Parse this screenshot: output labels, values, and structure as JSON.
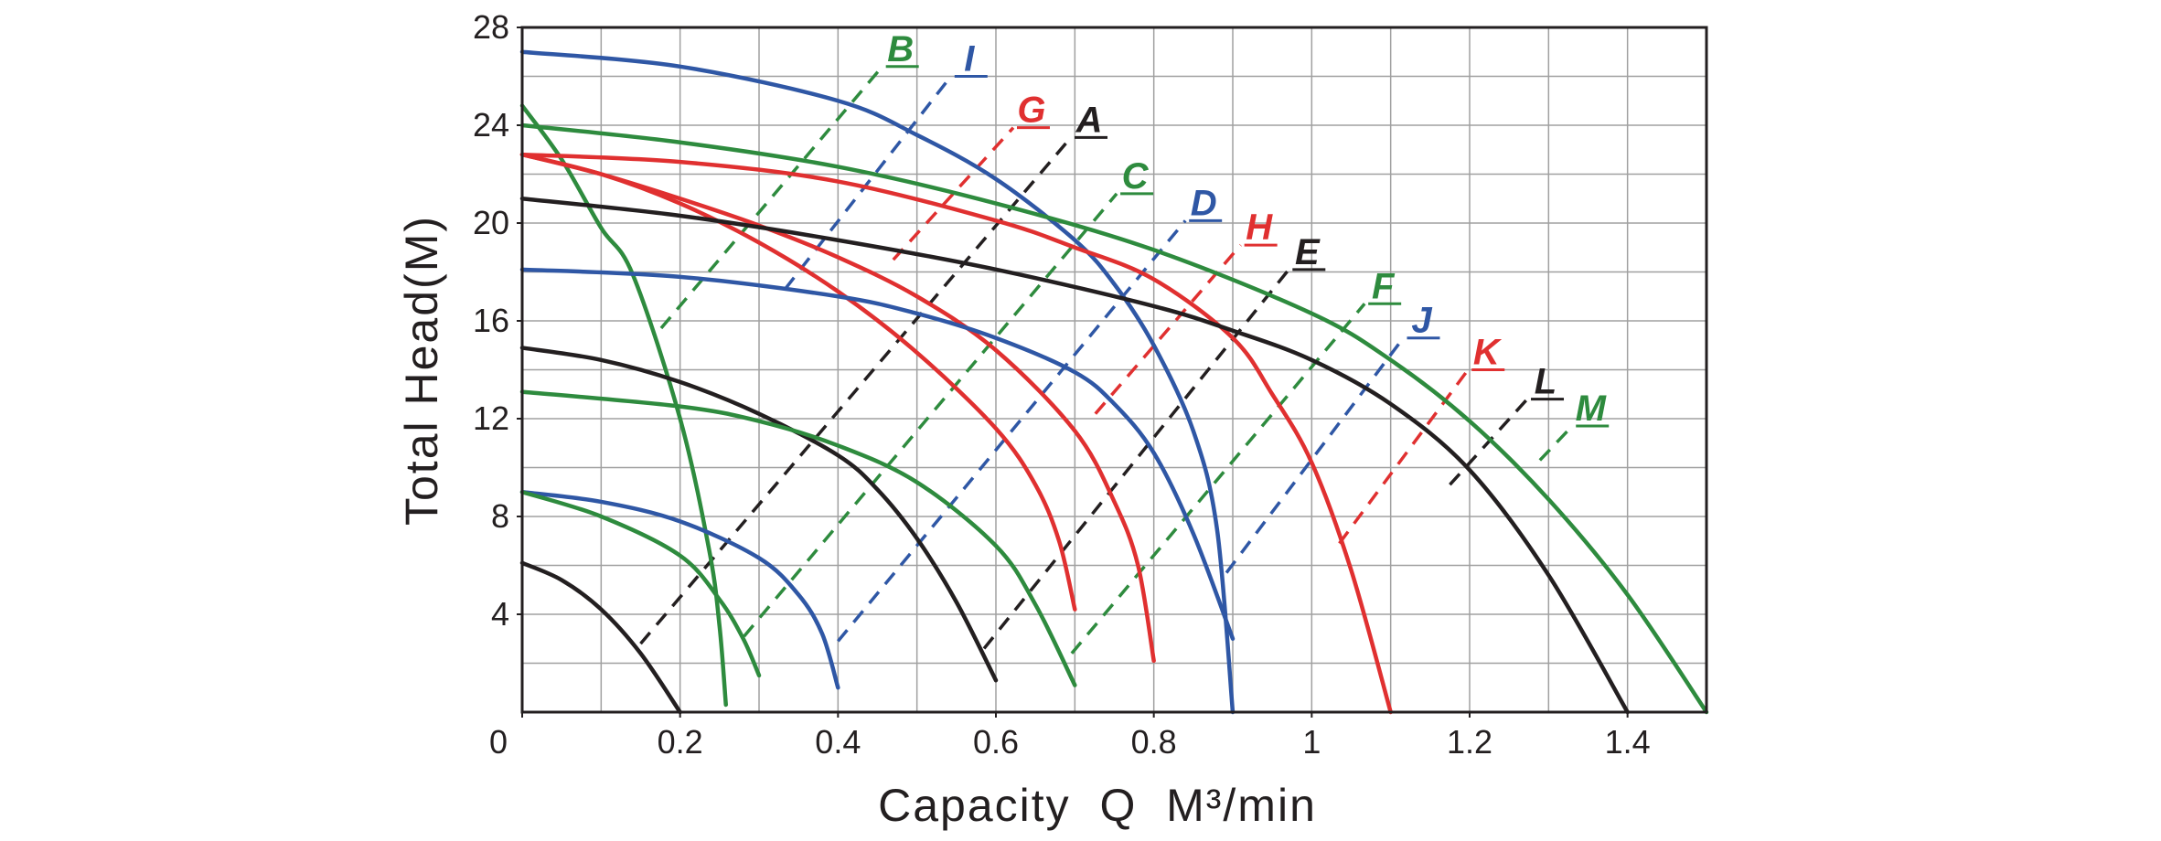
{
  "chart_data": {
    "type": "line",
    "x_label": "Capacity  Q  M³/min",
    "y_label": "Total Head(M)",
    "xlim": [
      0,
      1.5
    ],
    "ylim": [
      0,
      28
    ],
    "xticks": [
      0,
      0.2,
      0.4,
      0.6,
      0.8,
      1.0,
      1.2,
      1.4
    ],
    "yticks": [
      4,
      8,
      12,
      16,
      20,
      24,
      28
    ],
    "xgrid": [
      0.1,
      0.2,
      0.3,
      0.4,
      0.5,
      0.6,
      0.7,
      0.8,
      0.9,
      1.0,
      1.1,
      1.2,
      1.3,
      1.4
    ],
    "ygrid": [
      2,
      4,
      6,
      8,
      10,
      12,
      14,
      16,
      18,
      20,
      22,
      24,
      26
    ],
    "series": [
      {
        "color": "#2e8b3e",
        "x": [
          0,
          0.05,
          0.1,
          0.14,
          0.2,
          0.237,
          0.25,
          0.258
        ],
        "values": [
          24.8,
          22.6,
          19.8,
          17.9,
          12,
          6.6,
          3.5,
          0.3
        ]
      },
      {
        "color": "#2f57a5",
        "x": [
          0,
          0.2,
          0.4,
          0.5,
          0.6,
          0.7,
          0.75,
          0.8,
          0.85,
          0.88,
          0.9
        ],
        "values": [
          27,
          26.4,
          25,
          23.6,
          21.8,
          19.3,
          17.5,
          15,
          11.5,
          7.5,
          0
        ]
      },
      {
        "color": "#2e8b3e",
        "x": [
          0,
          0.2,
          0.4,
          0.6,
          0.8,
          1.0,
          1.1,
          1.2,
          1.3,
          1.4,
          1.5
        ],
        "values": [
          24,
          23.3,
          22.3,
          20.8,
          18.9,
          16.3,
          14.4,
          11.9,
          8.7,
          4.8,
          0
        ]
      },
      {
        "color": "#e03030",
        "x": [
          0,
          0.2,
          0.4,
          0.6,
          0.7,
          0.8,
          0.9,
          0.95,
          1.0,
          1.05,
          1.1
        ],
        "values": [
          22.8,
          22.5,
          21.7,
          20.1,
          19,
          17.7,
          15.3,
          13,
          10.2,
          5.8,
          0
        ]
      },
      {
        "color": "#e03030",
        "x": [
          0,
          0.1,
          0.2,
          0.3,
          0.4,
          0.5,
          0.6,
          0.7,
          0.75,
          0.78,
          0.8
        ],
        "values": [
          22.8,
          22,
          21,
          19.9,
          18.6,
          17,
          14.8,
          11.5,
          8.6,
          6,
          2.1
        ]
      },
      {
        "color": "#e03030",
        "x": [
          0,
          0.1,
          0.2,
          0.3,
          0.4,
          0.5,
          0.6,
          0.65,
          0.68,
          0.7
        ],
        "values": [
          22.8,
          22,
          20.8,
          19.2,
          17.2,
          14.7,
          11.6,
          9.3,
          7,
          4.2
        ]
      },
      {
        "color": "#231f20",
        "x": [
          0,
          0.2,
          0.4,
          0.6,
          0.8,
          0.9,
          1.0,
          1.1,
          1.2,
          1.3,
          1.4
        ],
        "values": [
          21,
          20.3,
          19.3,
          18.1,
          16.6,
          15.6,
          14.4,
          12.6,
          9.9,
          5.6,
          0
        ]
      },
      {
        "color": "#2f57a5",
        "x": [
          0,
          0.2,
          0.4,
          0.5,
          0.6,
          0.7,
          0.75,
          0.8,
          0.85,
          0.9
        ],
        "values": [
          18.1,
          17.8,
          17,
          16.3,
          15.3,
          13.9,
          12.6,
          10.6,
          7.3,
          3
        ]
      },
      {
        "color": "#231f20",
        "x": [
          0,
          0.1,
          0.2,
          0.3,
          0.4,
          0.45,
          0.5,
          0.55,
          0.6
        ],
        "values": [
          14.9,
          14.4,
          13.5,
          12.2,
          10.5,
          9.1,
          7.1,
          4.5,
          1.3
        ]
      },
      {
        "color": "#2e8b3e",
        "x": [
          0,
          0.2,
          0.3,
          0.4,
          0.5,
          0.6,
          0.65,
          0.7
        ],
        "values": [
          13.1,
          12.5,
          11.9,
          10.9,
          9.4,
          6.8,
          4.4,
          1.1
        ]
      },
      {
        "color": "#2f57a5",
        "x": [
          0,
          0.1,
          0.2,
          0.3,
          0.35,
          0.38,
          0.4
        ],
        "values": [
          9,
          8.6,
          7.8,
          6.3,
          4.8,
          3.2,
          1
        ]
      },
      {
        "color": "#2e8b3e",
        "x": [
          0,
          0.1,
          0.2,
          0.25,
          0.28,
          0.3
        ],
        "values": [
          9,
          8,
          6.4,
          4.6,
          3,
          1.5
        ]
      },
      {
        "color": "#231f20",
        "x": [
          0,
          0.05,
          0.1,
          0.15,
          0.2
        ],
        "values": [
          6.1,
          5.4,
          4.2,
          2.4,
          0
        ]
      }
    ],
    "operating_lines": [
      {
        "name": "B",
        "color": "#2e8b3e",
        "x": [
          0.176,
          0.456
        ],
        "values": [
          15.7,
          26.4
        ]
      },
      {
        "name": "I",
        "color": "#2f57a5",
        "x": [
          0.333,
          0.543
        ],
        "values": [
          17.3,
          26.0
        ]
      },
      {
        "name": "G",
        "color": "#e03030",
        "x": [
          0.47,
          0.622
        ],
        "values": [
          18.5,
          23.9
        ]
      },
      {
        "name": "A",
        "color": "#231f20",
        "x": [
          0.15,
          0.695
        ],
        "values": [
          2.8,
          23.5
        ]
      },
      {
        "name": "C",
        "color": "#2e8b3e",
        "x": [
          0.281,
          0.753
        ],
        "values": [
          3.1,
          21.2
        ]
      },
      {
        "name": "D",
        "color": "#2f57a5",
        "x": [
          0.4,
          0.84
        ],
        "values": [
          2.9,
          20.1
        ]
      },
      {
        "name": "H",
        "color": "#e03030",
        "x": [
          0.726,
          0.91
        ],
        "values": [
          12.2,
          19.1
        ]
      },
      {
        "name": "E",
        "color": "#231f20",
        "x": [
          0.585,
          0.971
        ],
        "values": [
          2.6,
          18.1
        ]
      },
      {
        "name": "F",
        "color": "#2e8b3e",
        "x": [
          0.696,
          1.067
        ],
        "values": [
          2.4,
          16.7
        ]
      },
      {
        "name": "J",
        "color": "#2f57a5",
        "x": [
          0.892,
          1.116
        ],
        "values": [
          5.7,
          15.3
        ]
      },
      {
        "name": "K",
        "color": "#e03030",
        "x": [
          1.035,
          1.198
        ],
        "values": [
          6.9,
          14.0
        ]
      },
      {
        "name": "L",
        "color": "#231f20",
        "x": [
          1.175,
          1.273
        ],
        "values": [
          9.3,
          12.8
        ]
      },
      {
        "name": "M",
        "color": "#2e8b3e",
        "x": [
          1.289,
          1.33
        ],
        "values": [
          10.3,
          11.7
        ]
      }
    ]
  }
}
